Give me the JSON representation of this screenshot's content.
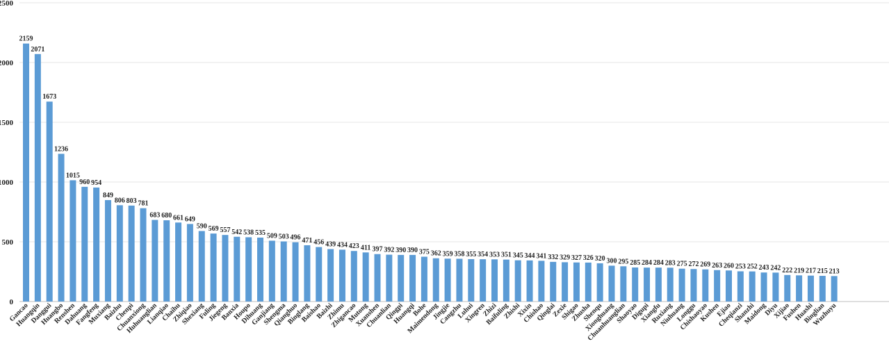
{
  "chart_data": {
    "type": "bar",
    "title": "",
    "xlabel": "",
    "ylabel": "",
    "ylim": [
      0,
      2500
    ],
    "yticks": [
      0,
      500,
      1000,
      1500,
      2000,
      2500
    ],
    "grid": true,
    "bar_color": "#5b9bd5",
    "categories": [
      "Gancao",
      "Huangqin",
      "Danggui",
      "Huangbo",
      "Renshen",
      "Dahuang",
      "Fangfeng",
      "Muxiang",
      "Baizhu",
      "Chenpi",
      "Chuanxiong",
      "Huhuanglian",
      "Lianqiao",
      "Chaihu",
      "Zhiqiao",
      "Shexiang",
      "Fuling",
      "Jiegeng",
      "Banxia",
      "Houpo",
      "Dihuang",
      "Ganjiang",
      "Shengma",
      "Qianghuo",
      "Binglang",
      "Baishao",
      "Baizhi",
      "Zhimu",
      "Zhigancao",
      "Mutong",
      "Xuanshen",
      "Chuanlian",
      "Qingpi",
      "Huangqi",
      "Bohe",
      "Maimendong",
      "Jingjie",
      "Cangzhu",
      "Luhui",
      "Xingren",
      "Zhizi",
      "Baifuling",
      "Zhishi",
      "Xixin",
      "Chishao",
      "Qinglai",
      "Zexie",
      "Shigao",
      "Zhusha",
      "Shenqu",
      "Xionghuang",
      "Chuanhuanglian",
      "Shaoyao",
      "Digupi",
      "Xiangfu",
      "Ruxiang",
      "Niuhuang",
      "Longgu",
      "Chishaoyao",
      "Kushen",
      "Ejiao",
      "Cheqianzi",
      "Shanzhi",
      "Maidong",
      "Diyu",
      "Xijiao",
      "Fushen",
      "Huashi",
      "Binglian",
      "Wuzhuyu"
    ],
    "values": [
      2159,
      2071,
      1673,
      1236,
      1015,
      960,
      954,
      849,
      806,
      803,
      781,
      683,
      680,
      661,
      649,
      590,
      569,
      557,
      542,
      538,
      535,
      509,
      503,
      496,
      471,
      456,
      439,
      434,
      423,
      411,
      397,
      392,
      390,
      390,
      375,
      362,
      359,
      358,
      355,
      354,
      353,
      351,
      345,
      344,
      341,
      332,
      329,
      327,
      326,
      320,
      300,
      295,
      285,
      284,
      284,
      283,
      275,
      272,
      269,
      263,
      260,
      253,
      252,
      243,
      242,
      222,
      219,
      217,
      215,
      213
    ]
  }
}
